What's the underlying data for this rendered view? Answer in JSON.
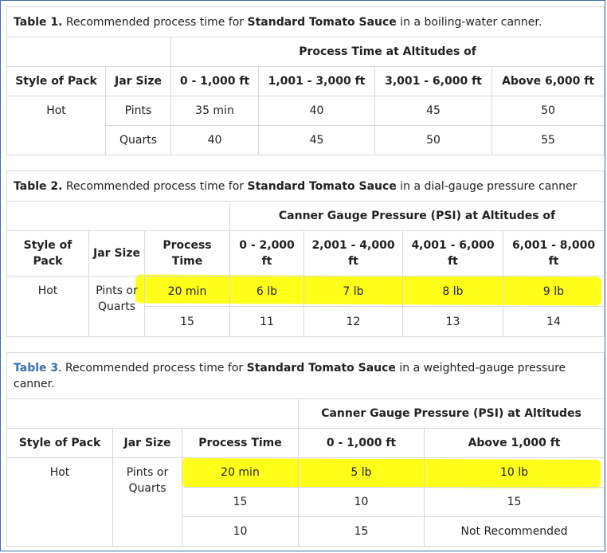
{
  "table1": {
    "caption_num": "Table 1.",
    "caption_pre": " Recommended process time for ",
    "caption_bold": "Standard Tomato Sauce",
    "caption_post": " in a boiling-water canner.",
    "group_header": "Process Time at Altitudes of",
    "headers": [
      "Style of Pack",
      "Jar Size",
      "0 - 1,000 ft",
      "1,001 - 3,000 ft",
      "3,001 - 6,000 ft",
      "Above 6,000 ft"
    ],
    "style": "Hot",
    "rows": [
      {
        "jar": "Pints",
        "values": [
          "35 min",
          "40",
          "45",
          "50"
        ]
      },
      {
        "jar": "Quarts",
        "values": [
          "40",
          "45",
          "50",
          "55"
        ]
      }
    ]
  },
  "table2": {
    "caption_num": "Table 2.",
    "caption_pre": " Recommended process time for ",
    "caption_bold": "Standard Tomato Sauce",
    "caption_post": " in a dial-gauge pressure canner",
    "group_header": "Canner Gauge Pressure (PSI) at Altitudes of",
    "headers": [
      "Style of Pack",
      "Jar Size",
      "Process Time",
      "0 - 2,000 ft",
      "2,001 - 4,000 ft",
      "4,001 - 6,000 ft",
      "6,001 - 8,000 ft"
    ],
    "style": "Hot",
    "jar": "Pints or Quarts",
    "rows": [
      {
        "time": "20 min",
        "values": [
          "6 lb",
          "7 lb",
          "8 lb",
          "9 lb"
        ]
      },
      {
        "time": "15",
        "values": [
          "11",
          "12",
          "13",
          "14"
        ]
      }
    ]
  },
  "table3": {
    "caption_num": "Table 3",
    "caption_pre": ". Recommended process time for ",
    "caption_bold": "Standard Tomato Sauce",
    "caption_post": " in a weighted-gauge pressure canner.",
    "group_header": "Canner Gauge Pressure (PSI) at Altitudes",
    "headers": [
      "Style of Pack",
      "Jar Size",
      "Process Time",
      "0 - 1,000 ft",
      "Above 1,000 ft"
    ],
    "style": "Hot",
    "jar": "Pints or Quarts",
    "rows": [
      {
        "time": "20 min",
        "values": [
          "5 lb",
          "10 lb"
        ]
      },
      {
        "time": "15",
        "values": [
          "10",
          "15"
        ]
      },
      {
        "time": "10",
        "values": [
          "15",
          "Not Recommended"
        ]
      }
    ]
  },
  "colors": {
    "highlight": "#ffff1a",
    "border": "#d9d9d9",
    "table3_link": "#3a6fa8",
    "frame": "#3b6fb0"
  }
}
